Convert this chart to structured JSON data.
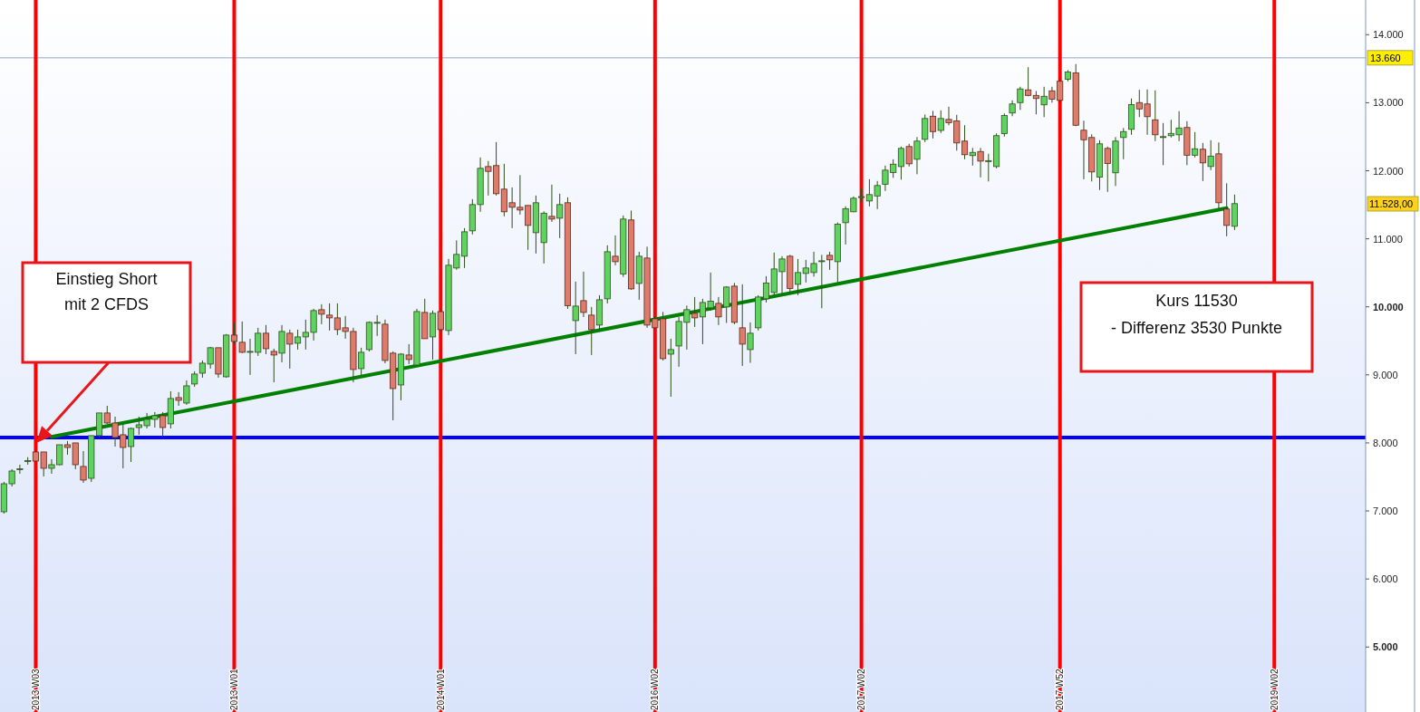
{
  "chart_data": {
    "type": "candlestick",
    "categories": [
      null,
      null,
      null,
      null,
      "2013 W03",
      null,
      null,
      null,
      null,
      null,
      null,
      null,
      null,
      null,
      null,
      null,
      null,
      null,
      null,
      null,
      null,
      null,
      null,
      null,
      null,
      null,
      null,
      null,
      null,
      "2013 W01",
      null,
      null,
      null,
      null,
      null,
      null,
      null,
      null,
      null,
      null,
      null,
      null,
      null,
      null,
      null,
      null,
      null,
      null,
      null,
      null,
      null,
      null,
      null,
      null,
      null,
      "2014 W01",
      null,
      null,
      null,
      null,
      null,
      null,
      null,
      null,
      null,
      null,
      null,
      null,
      null,
      null,
      null,
      null,
      null,
      null,
      null,
      null,
      null,
      null,
      null,
      null,
      null,
      null,
      "2016 W02",
      null,
      null,
      null,
      null,
      null,
      null,
      null,
      null,
      null,
      null,
      null,
      null,
      null,
      null,
      null,
      null,
      null,
      null,
      null,
      null,
      null,
      null,
      null,
      null,
      null,
      "2017 W02",
      null,
      null,
      null,
      null,
      null,
      null,
      null,
      null,
      null,
      null,
      null,
      null,
      null,
      null,
      null,
      null,
      null,
      null,
      null,
      null,
      null,
      null,
      null,
      null,
      "2017 W52",
      null,
      null,
      null,
      null,
      null,
      null,
      null,
      null,
      null,
      null,
      null,
      null,
      null,
      null,
      null,
      null,
      null,
      null,
      null,
      null,
      null,
      null,
      null,
      null,
      null,
      null,
      "2019 W02",
      null,
      null,
      null,
      null,
      null,
      null,
      null,
      null,
      null,
      null,
      null
    ],
    "ohlc": [
      [
        6988,
        7427,
        6961,
        7400
      ],
      [
        7400,
        7614,
        7360,
        7587
      ],
      [
        7610,
        7680,
        7547,
        7620
      ],
      [
        7730,
        7790,
        7680,
        7740
      ],
      [
        7867,
        7890,
        7720,
        7733
      ],
      [
        7867,
        7867,
        7507,
        7627
      ],
      [
        7627,
        7760,
        7547,
        7680
      ],
      [
        7680,
        7973,
        7670,
        7973
      ],
      [
        7973,
        8027,
        7827,
        7933
      ],
      [
        8000,
        8000,
        7614,
        7680
      ],
      [
        7654,
        7880,
        7414,
        7454
      ],
      [
        7480,
        8107,
        7427,
        8107
      ],
      [
        8107,
        8440,
        8080,
        8440
      ],
      [
        8440,
        8546,
        8280,
        8293
      ],
      [
        8293,
        8386,
        7947,
        8080
      ],
      [
        8120,
        8280,
        7627,
        7933
      ],
      [
        7947,
        8226,
        7720,
        8213
      ],
      [
        8226,
        8386,
        8120,
        8266
      ],
      [
        8253,
        8440,
        8213,
        8346
      ],
      [
        8346,
        8453,
        8226,
        8400
      ],
      [
        8400,
        8453,
        8093,
        8226
      ],
      [
        8280,
        8759,
        8213,
        8653
      ],
      [
        8666,
        8746,
        8546,
        8626
      ],
      [
        8586,
        8919,
        8560,
        8839
      ],
      [
        8866,
        9052,
        8826,
        9012
      ],
      [
        9025,
        9212,
        8959,
        9172
      ],
      [
        9159,
        9412,
        9092,
        9399
      ],
      [
        9399,
        9399,
        8959,
        9012
      ],
      [
        8972,
        9600,
        8959,
        9585
      ],
      [
        9585,
        9772,
        9452,
        9492
      ],
      [
        9479,
        9785,
        9320,
        9332
      ],
      [
        9332,
        9530,
        9000,
        9345
      ],
      [
        9332,
        9692,
        9279,
        9612
      ],
      [
        9612,
        9732,
        9305,
        9385
      ],
      [
        9345,
        9385,
        8892,
        9292
      ],
      [
        9319,
        9732,
        9185,
        9638
      ],
      [
        9612,
        9665,
        9092,
        9452
      ],
      [
        9465,
        9665,
        9372,
        9558
      ],
      [
        9558,
        9812,
        9372,
        9625
      ],
      [
        9625,
        9971,
        9505,
        9945
      ],
      [
        9958,
        10038,
        9745,
        9892
      ],
      [
        9878,
        10051,
        9652,
        9838
      ],
      [
        9838,
        10051,
        9585,
        9665
      ],
      [
        9692,
        9865,
        9532,
        9638
      ],
      [
        9638,
        9692,
        8892,
        9079
      ],
      [
        9092,
        9399,
        8999,
        9332
      ],
      [
        9372,
        9785,
        9345,
        9772
      ],
      [
        9765,
        9878,
        9572,
        9772
      ],
      [
        9745,
        9812,
        9172,
        9212
      ],
      [
        9319,
        9345,
        8333,
        8799
      ],
      [
        8852,
        9319,
        8626,
        9305
      ],
      [
        9292,
        9452,
        9159,
        9226
      ],
      [
        9145,
        9971,
        9145,
        9931
      ],
      [
        9918,
        10118,
        9532,
        9532
      ],
      [
        9558,
        9945,
        9225,
        9905
      ],
      [
        9930,
        9950,
        9640,
        9665
      ],
      [
        9652,
        10704,
        9585,
        10611
      ],
      [
        10571,
        10977,
        10545,
        10771
      ],
      [
        10744,
        11157,
        10571,
        11103
      ],
      [
        11117,
        11583,
        11064,
        11503
      ],
      [
        11503,
        12196,
        11397,
        12036
      ],
      [
        12062,
        12143,
        11636,
        11991
      ],
      [
        12076,
        12422,
        11636,
        11663
      ],
      [
        11730,
        12102,
        11330,
        11397
      ],
      [
        11530,
        11756,
        11157,
        11463
      ],
      [
        11463,
        11936,
        11356,
        11423
      ],
      [
        11490,
        11490,
        10837,
        11197
      ],
      [
        11090,
        11636,
        10784,
        11530
      ],
      [
        10944,
        11403,
        10637,
        11377
      ],
      [
        11330,
        11796,
        11250,
        11290
      ],
      [
        11303,
        11663,
        11010,
        11503
      ],
      [
        11530,
        11610,
        9971,
        10018
      ],
      [
        9798,
        10371,
        9305,
        10011
      ],
      [
        10091,
        10517,
        9850,
        9918
      ],
      [
        9878,
        9998,
        9292,
        9665
      ],
      [
        9732,
        10171,
        9665,
        10104
      ],
      [
        10118,
        10904,
        10051,
        10810
      ],
      [
        10744,
        11050,
        10611,
        10664
      ],
      [
        10484,
        11343,
        10440,
        11290
      ],
      [
        11277,
        11415,
        10250,
        10264
      ],
      [
        10344,
        10810,
        10104,
        10744
      ],
      [
        10717,
        10884,
        9692,
        9732
      ],
      [
        9825,
        9860,
        9680,
        9692
      ],
      [
        9825,
        9925,
        9212,
        9239
      ],
      [
        9305,
        9532,
        8679,
        9372
      ],
      [
        9425,
        9850,
        9119,
        9785
      ],
      [
        9772,
        10018,
        9372,
        9958
      ],
      [
        9905,
        10144,
        9705,
        9838
      ],
      [
        9852,
        10118,
        9452,
        10064
      ],
      [
        9985,
        10504,
        9945,
        10084
      ],
      [
        10051,
        10144,
        9732,
        9852
      ],
      [
        9998,
        10304,
        9763,
        10291
      ],
      [
        10304,
        10351,
        9745,
        9772
      ],
      [
        9692,
        10331,
        9132,
        9452
      ],
      [
        9372,
        9771,
        9177,
        9612
      ],
      [
        9692,
        10171,
        9652,
        10144
      ],
      [
        10118,
        10451,
        10064,
        10351
      ],
      [
        10211,
        10797,
        10171,
        10557
      ],
      [
        10517,
        10744,
        10171,
        10704
      ],
      [
        10744,
        10764,
        10198,
        10270
      ],
      [
        10331,
        10704,
        10171,
        10504
      ],
      [
        10491,
        10690,
        10358,
        10571
      ],
      [
        10504,
        10810,
        10444,
        10637
      ],
      [
        10664,
        10764,
        9979,
        10677
      ],
      [
        10757,
        10810,
        10544,
        10691
      ],
      [
        10664,
        11240,
        10358,
        11214
      ],
      [
        11237,
        11477,
        10917,
        11443
      ],
      [
        11397,
        11623,
        11390,
        11596
      ],
      [
        11610,
        11740,
        11540,
        11620
      ],
      [
        11556,
        11876,
        11477,
        11650
      ],
      [
        11630,
        11850,
        11437,
        11783
      ],
      [
        11802,
        12076,
        11703,
        12009
      ],
      [
        11975,
        12169,
        11896,
        12097
      ],
      [
        12062,
        12356,
        11869,
        12329
      ],
      [
        12356,
        12396,
        12062,
        12102
      ],
      [
        12169,
        12496,
        11949,
        12436
      ],
      [
        12462,
        12827,
        12422,
        12768
      ],
      [
        12802,
        12880,
        12476,
        12576
      ],
      [
        12593,
        12887,
        12556,
        12768
      ],
      [
        12755,
        12942,
        12669,
        12707
      ],
      [
        12733,
        12822,
        12296,
        12409
      ],
      [
        12436,
        12669,
        12170,
        12236
      ],
      [
        12223,
        12336,
        12076,
        12270
      ],
      [
        12283,
        12336,
        11903,
        12142
      ],
      [
        12136,
        12250,
        11843,
        12149
      ],
      [
        12062,
        12549,
        12036,
        12516
      ],
      [
        12545,
        12842,
        12502,
        12814
      ],
      [
        12849,
        13035,
        12802,
        12982
      ],
      [
        13002,
        13235,
        12895,
        13203
      ],
      [
        13189,
        13522,
        13095,
        13108
      ],
      [
        13108,
        13172,
        12829,
        13062
      ],
      [
        12969,
        13235,
        12789,
        13095
      ],
      [
        13175,
        13235,
        13000,
        13052
      ],
      [
        13315,
        13355,
        12995,
        13035
      ],
      [
        13346,
        13480,
        13315,
        13453
      ],
      [
        13440,
        13568,
        12656,
        12669
      ],
      [
        12596,
        12736,
        11876,
        12456
      ],
      [
        12489,
        12536,
        11843,
        11983
      ],
      [
        11907,
        12449,
        11717,
        12396
      ],
      [
        12329,
        12356,
        11690,
        12107
      ],
      [
        11970,
        12496,
        11776,
        12436
      ],
      [
        12489,
        12629,
        12170,
        12576
      ],
      [
        12609,
        13062,
        12529,
        12971
      ],
      [
        13002,
        13189,
        12789,
        12909
      ],
      [
        12982,
        13195,
        12529,
        12795
      ],
      [
        12749,
        13182,
        12436,
        12529
      ],
      [
        12496,
        12702,
        12083,
        12502
      ],
      [
        12516,
        12749,
        12489,
        12549
      ],
      [
        12529,
        12876,
        12436,
        12629
      ],
      [
        12636,
        12729,
        12083,
        12229
      ],
      [
        12229,
        12569,
        12196,
        12323
      ],
      [
        12316,
        12409,
        11849,
        12116
      ],
      [
        12063,
        12449,
        12010,
        12216
      ],
      [
        12249,
        12416,
        11437,
        11530
      ],
      [
        11437,
        11816,
        11037,
        11197
      ],
      [
        11184,
        11650,
        11130,
        11517
      ],
      null,
      null,
      null,
      null,
      null,
      null,
      null,
      null,
      null,
      null,
      null,
      null,
      null,
      null,
      null,
      null
    ],
    "series": [
      {
        "type": "line",
        "values": [
          null,
          null,
          null,
          null,
          null,
          null,
          8090,
          null,
          null,
          null,
          null,
          null,
          null,
          null,
          null,
          null,
          null,
          null,
          null,
          null,
          null,
          null,
          null,
          null,
          null,
          null,
          null,
          null,
          null,
          null,
          null,
          null,
          null,
          null,
          null,
          null,
          null,
          null,
          null,
          null,
          null,
          null,
          null,
          null,
          null,
          null,
          null,
          null,
          null,
          null,
          null,
          null,
          null,
          null,
          null,
          null,
          null,
          null,
          null,
          null,
          null,
          null,
          null,
          null,
          null,
          null,
          null,
          null,
          null,
          null,
          null,
          null,
          null,
          null,
          null,
          null,
          null,
          null,
          null,
          null,
          null,
          null,
          null,
          null,
          null,
          null,
          null,
          null,
          null,
          null,
          null,
          null,
          null,
          null,
          null,
          null,
          null,
          null,
          null,
          null,
          null,
          null,
          null,
          null,
          null,
          null,
          null,
          null,
          null,
          null,
          null,
          null,
          null,
          null,
          null,
          null,
          null,
          null,
          null,
          null,
          null,
          null,
          null,
          null,
          null,
          null,
          null,
          null,
          null,
          null,
          null,
          null,
          null,
          null,
          null,
          null,
          null,
          null,
          null,
          null,
          null,
          null,
          null,
          null,
          null,
          null,
          null,
          null,
          null,
          null,
          null,
          null,
          null,
          null,
          11450,
          null,
          null,
          null,
          null,
          null,
          null,
          null,
          null,
          null,
          null,
          null,
          null,
          null,
          null,
          null,
          null,
          null
        ],
        "color": "#008000"
      }
    ],
    "ylim": [
      4045,
      14510
    ],
    "yticks": [
      {
        "value": 5000,
        "label": "5.000"
      },
      {
        "value": 6000,
        "label": "6.000"
      },
      {
        "value": 7000,
        "label": "7.000"
      },
      {
        "value": 8000,
        "label": "8.000"
      },
      {
        "value": 9000,
        "label": "9.000"
      },
      {
        "value": 10000,
        "label": "10.000"
      },
      {
        "value": 11000,
        "label": "11.000"
      },
      {
        "value": 12000,
        "label": "12.000"
      },
      {
        "value": 13000,
        "label": "13.000"
      },
      {
        "value": 14000,
        "label": "14.000"
      }
    ],
    "grid": "x",
    "ref_lines": [
      {
        "axis": "y",
        "value": 8080,
        "color": "#0000ff"
      },
      {
        "axis": "y",
        "value": 13660,
        "label": "13.660",
        "color": "#8fa8d0"
      }
    ],
    "annotations": [
      "Einstieg Short\nmit 2 CFDS",
      "Kurs 11530\n- Differenz 3530 Punkte",
      "11.528,00"
    ],
    "marker": "none"
  }
}
